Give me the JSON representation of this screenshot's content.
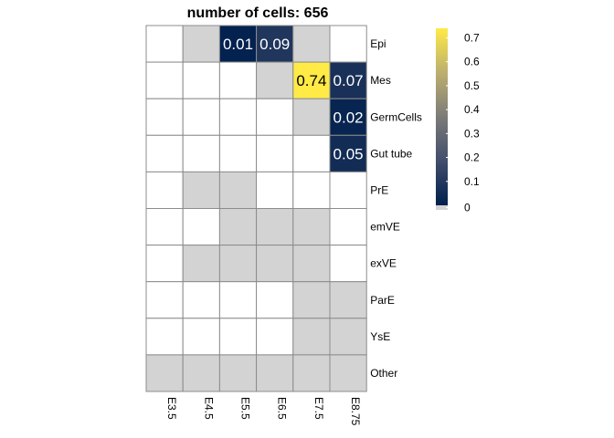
{
  "chart_data": {
    "type": "heatmap",
    "title": "number of cells:  656",
    "columns": [
      "E3.5",
      "E4.5",
      "E5.5",
      "E6.5",
      "E7.5",
      "E8.75"
    ],
    "rows": [
      "Epi",
      "Mes",
      "GermCells",
      "Gut tube",
      "PrE",
      "emVE",
      "exVE",
      "ParE",
      "YsE",
      "Other"
    ],
    "values": [
      [
        null,
        "na",
        0.01,
        0.09,
        "na",
        null
      ],
      [
        null,
        null,
        null,
        "na",
        0.74,
        0.07
      ],
      [
        null,
        null,
        null,
        null,
        "na",
        0.02
      ],
      [
        null,
        null,
        null,
        null,
        null,
        0.05
      ],
      [
        null,
        "na",
        "na",
        null,
        null,
        null
      ],
      [
        null,
        null,
        "na",
        "na",
        "na",
        null
      ],
      [
        null,
        "na",
        "na",
        "na",
        "na",
        null
      ],
      [
        null,
        null,
        null,
        null,
        "na",
        "na"
      ],
      [
        null,
        null,
        null,
        null,
        "na",
        "na"
      ],
      [
        "na",
        "na",
        "na",
        "na",
        "na",
        "na"
      ]
    ],
    "labels": [
      [
        "",
        "",
        "0.01",
        "0.09",
        "",
        ""
      ],
      [
        "",
        "",
        "",
        "",
        "0.74",
        "0.07"
      ],
      [
        "",
        "",
        "",
        "",
        "",
        "0.02"
      ],
      [
        "",
        "",
        "",
        "",
        "",
        "0.05"
      ],
      [
        "",
        "",
        "",
        "",
        "",
        ""
      ],
      [
        "",
        "",
        "",
        "",
        "",
        ""
      ],
      [
        "",
        "",
        "",
        "",
        "",
        ""
      ],
      [
        "",
        "",
        "",
        "",
        "",
        ""
      ],
      [
        "",
        "",
        "",
        "",
        "",
        ""
      ],
      [
        "",
        "",
        "",
        "",
        "",
        ""
      ]
    ],
    "legend": {
      "range": [
        0,
        0.74
      ],
      "ticks": [
        "0",
        "0.1",
        "0.2",
        "0.3",
        "0.4",
        "0.5",
        "0.6",
        "0.7"
      ],
      "colors": [
        "#00204d",
        "#414d6b",
        "#7c7b78",
        "#bcaf6f",
        "#ffea46"
      ],
      "na_color": "#d3d3d3",
      "empty_color": "#ffffff"
    }
  }
}
